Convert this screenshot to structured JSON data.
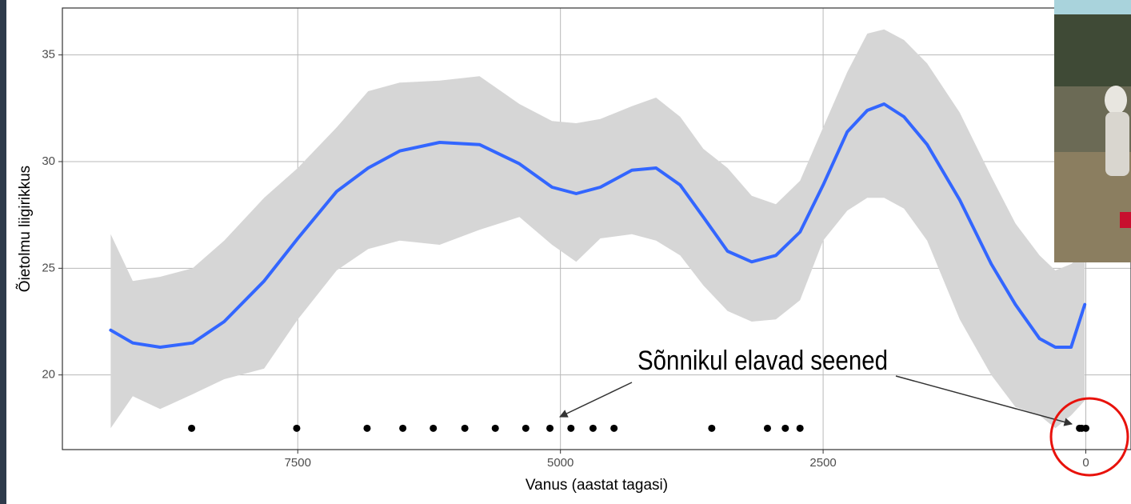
{
  "chart_data": {
    "type": "line",
    "x_label": "Vanus (aastat tagasi)",
    "y_label": "Õietolmu liigirikkus",
    "xlim": [
      9740,
      -430
    ],
    "ylim": [
      16.5,
      37.2
    ],
    "xticks": [
      7500,
      5000,
      2500,
      0
    ],
    "yticks": [
      20,
      25,
      30,
      35
    ],
    "grid": true,
    "color": "#3366ff",
    "band_color": "#d6d6d6",
    "x": [
      9280,
      9070,
      8810,
      8500,
      8200,
      7820,
      7500,
      7130,
      6830,
      6530,
      6150,
      5770,
      5390,
      5080,
      4850,
      4620,
      4320,
      4090,
      3860,
      3640,
      3410,
      3180,
      2950,
      2720,
      2500,
      2270,
      2080,
      1920,
      1730,
      1510,
      1200,
      900,
      670,
      440,
      290,
      140,
      10
    ],
    "values": [
      22.1,
      21.5,
      21.3,
      21.5,
      22.5,
      24.4,
      26.4,
      28.6,
      29.7,
      30.5,
      30.9,
      30.8,
      29.9,
      28.8,
      28.5,
      28.8,
      29.6,
      29.7,
      28.9,
      27.4,
      25.8,
      25.3,
      25.6,
      26.7,
      28.9,
      31.4,
      32.4,
      32.7,
      32.1,
      30.8,
      28.2,
      25.2,
      23.3,
      21.7,
      21.3,
      21.3,
      23.3
    ],
    "upper": [
      26.6,
      24.4,
      24.6,
      25.0,
      26.3,
      28.3,
      29.7,
      31.6,
      33.3,
      33.7,
      33.8,
      34.0,
      32.7,
      31.9,
      31.8,
      32.0,
      32.6,
      33.0,
      32.1,
      30.6,
      29.7,
      28.4,
      28.0,
      29.1,
      31.6,
      34.2,
      36.0,
      36.2,
      35.7,
      34.6,
      32.3,
      29.3,
      27.1,
      25.6,
      24.9,
      25.2,
      25.7
    ],
    "lower": [
      17.5,
      19.0,
      18.4,
      19.1,
      19.8,
      20.3,
      22.6,
      24.9,
      25.9,
      26.3,
      26.1,
      26.8,
      27.4,
      26.1,
      25.3,
      26.4,
      26.6,
      26.3,
      25.6,
      24.2,
      23.0,
      22.5,
      22.6,
      23.5,
      26.3,
      27.7,
      28.3,
      28.3,
      27.8,
      26.3,
      22.6,
      20.0,
      18.5,
      18.1,
      17.5,
      18.1,
      18.8
    ],
    "points": {
      "x": [
        8510,
        7510,
        6840,
        6500,
        6210,
        5910,
        5620,
        5330,
        5100,
        4900,
        4690,
        4490,
        3560,
        3030,
        2860,
        2720,
        60,
        40,
        0
      ],
      "values": [
        17.5,
        17.5,
        17.5,
        17.5,
        17.5,
        17.5,
        17.5,
        17.5,
        17.5,
        17.5,
        17.5,
        17.5,
        17.5,
        17.5,
        17.5,
        17.5,
        17.5,
        17.5,
        17.5
      ],
      "color": "#000000"
    },
    "annotation": "Sõnnikul elavad seened"
  }
}
